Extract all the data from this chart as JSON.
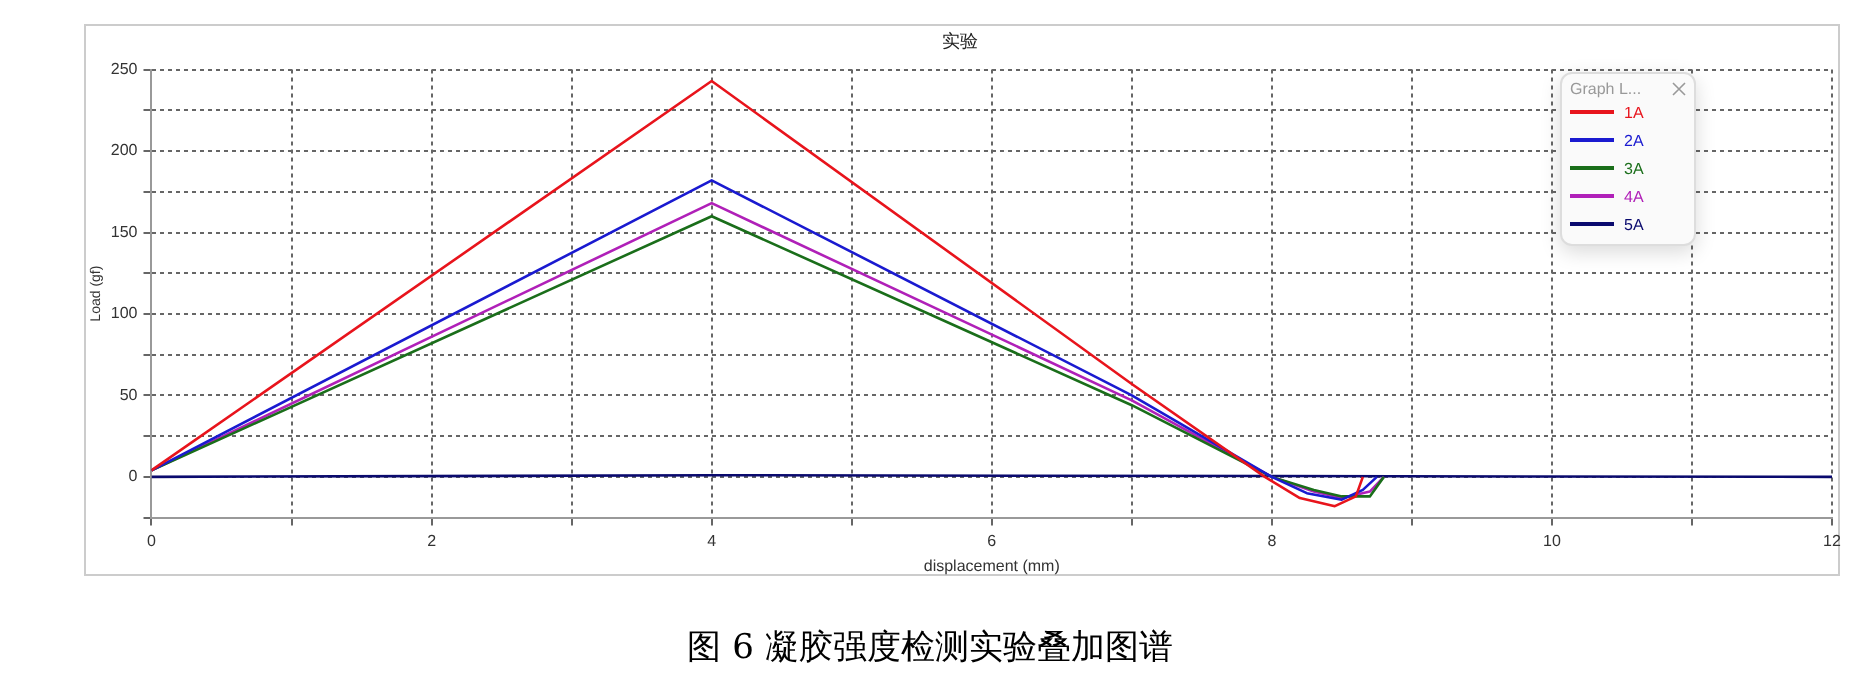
{
  "chart_data": {
    "type": "line",
    "title": "实验",
    "xlabel": "displacement (mm)",
    "ylabel": "Load (gf)",
    "legend_title": "Graph L...",
    "annotations": [
      "图 6  凝胶强度检测实验叠加图谱"
    ],
    "xlim": [
      0,
      12
    ],
    "ylim": [
      -25,
      250
    ],
    "xticks": [
      0,
      {
        "value": 1,
        "label": null
      },
      2,
      {
        "value": 3,
        "label": null
      },
      4,
      {
        "value": 5,
        "label": null
      },
      6,
      {
        "value": 7,
        "label": null
      },
      8,
      {
        "value": 9,
        "label": null
      },
      10,
      {
        "value": 11,
        "label": null
      },
      12
    ],
    "yticks": [
      {
        "value": -25,
        "label": null
      },
      0,
      {
        "value": 25,
        "label": null
      },
      50,
      {
        "value": 75,
        "label": null
      },
      100,
      {
        "value": 125,
        "label": null
      },
      150,
      {
        "value": 175,
        "label": null
      },
      200,
      {
        "value": 225,
        "label": null
      },
      250
    ],
    "grid": true,
    "legend": "top right",
    "marker": "none",
    "line_style": "solid",
    "series": [
      {
        "name": "1A",
        "color": "#e8141c",
        "x": [
          0,
          4,
          7,
          7.95,
          8.2,
          8.45,
          8.6,
          8.65
        ],
        "values": [
          4,
          243,
          57,
          0,
          -13,
          -18,
          -12,
          0
        ]
      },
      {
        "name": "2A",
        "color": "#1a1ad0",
        "x": [
          0,
          4,
          7,
          8,
          8.25,
          8.5,
          8.65,
          8.75
        ],
        "values": [
          4,
          182,
          50,
          0,
          -10,
          -14,
          -8,
          0
        ]
      },
      {
        "name": "3A",
        "color": "#1a6e1a",
        "x": [
          0,
          4,
          7,
          8,
          8.3,
          8.5,
          8.7,
          8.8
        ],
        "values": [
          4,
          160,
          44,
          0,
          -8,
          -12,
          -12,
          0
        ]
      },
      {
        "name": "4A",
        "color": "#b020b8",
        "x": [
          0,
          4,
          7,
          8,
          8.3,
          8.5,
          8.7,
          8.8
        ],
        "values": [
          4,
          168,
          47,
          0,
          -9,
          -13,
          -9,
          0
        ]
      },
      {
        "name": "5A",
        "color": "#0a0a6e",
        "x": [
          0,
          4,
          12
        ],
        "values": [
          0,
          1,
          0
        ]
      }
    ]
  }
}
